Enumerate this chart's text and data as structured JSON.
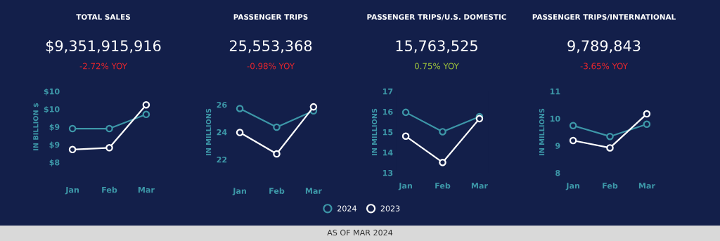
{
  "chart_data": [
    {
      "type": "line",
      "title": "TOTAL SALES",
      "subtitle": "$9,351,915,916",
      "annotations": [
        "-2.72% YOY"
      ],
      "ylabel": "IN BILLION $",
      "categories": [
        "Jan",
        "Feb",
        "Mar"
      ],
      "ylim": [
        8,
        10
      ],
      "yticks": [
        {
          "value": 8,
          "label": "$8"
        },
        {
          "value": 8.5,
          "label": "$9"
        },
        {
          "value": 9,
          "label": "$9"
        },
        {
          "value": 9.5,
          "label": "$10"
        },
        {
          "value": 10,
          "label": "$10"
        }
      ],
      "marker": "circle",
      "legend": "bottom",
      "grid": false,
      "series": [
        {
          "name": "2024",
          "color": "#3d97a8",
          "values": [
            8.95,
            8.95,
            9.35
          ]
        },
        {
          "name": "2023",
          "color": "#ffffff",
          "values": [
            8.36,
            8.41,
            9.62
          ]
        }
      ]
    },
    {
      "type": "line",
      "title": "PASSENGER TRIPS",
      "subtitle": "25,553,368",
      "annotations": [
        "-0.98% YOY"
      ],
      "ylabel": "IN MILLIONS",
      "categories": [
        "Jan",
        "Feb",
        "Mar"
      ],
      "ylim": [
        22,
        26
      ],
      "yticks": [
        22,
        24,
        26
      ],
      "marker": "circle",
      "legend": "bottom",
      "grid": false,
      "series": [
        {
          "name": "2024",
          "color": "#3d97a8",
          "values": [
            25.72,
            24.36,
            25.55
          ]
        },
        {
          "name": "2023",
          "color": "#ffffff",
          "values": [
            23.97,
            22.41,
            25.84
          ]
        }
      ]
    },
    {
      "type": "line",
      "title": "PASSENGER TRIPS/U.S. DOMESTIC",
      "subtitle": "15,763,525",
      "annotations": [
        "0.75% YOY"
      ],
      "ylabel": "IN MILLIONS",
      "categories": [
        "Jan",
        "Feb",
        "Mar"
      ],
      "ylim": [
        13,
        17
      ],
      "yticks": [
        13,
        14,
        15,
        16,
        17
      ],
      "marker": "circle",
      "legend": "bottom",
      "grid": false,
      "series": [
        {
          "name": "2024",
          "color": "#3d97a8",
          "values": [
            15.97,
            15.02,
            15.76
          ]
        },
        {
          "name": "2023",
          "color": "#ffffff",
          "values": [
            14.8,
            13.51,
            15.66
          ]
        }
      ]
    },
    {
      "type": "line",
      "title": "PASSENGER TRIPS/INTERNATIONAL",
      "subtitle": "9,789,843",
      "annotations": [
        "-3.65% YOY"
      ],
      "ylabel": "IN MILLIONS",
      "categories": [
        "Jan",
        "Feb",
        "Mar"
      ],
      "ylim": [
        8,
        11
      ],
      "yticks": [
        8,
        9,
        10,
        11
      ],
      "marker": "circle",
      "legend": "bottom",
      "grid": false,
      "series": [
        {
          "name": "2024",
          "color": "#3d97a8",
          "values": [
            9.74,
            9.34,
            9.79
          ]
        },
        {
          "name": "2023",
          "color": "#ffffff",
          "values": [
            9.19,
            8.92,
            10.17
          ]
        }
      ]
    },
    {
      "type": "other",
      "annotations": [
        "AS OF MAR 2024"
      ]
    }
  ]
}
